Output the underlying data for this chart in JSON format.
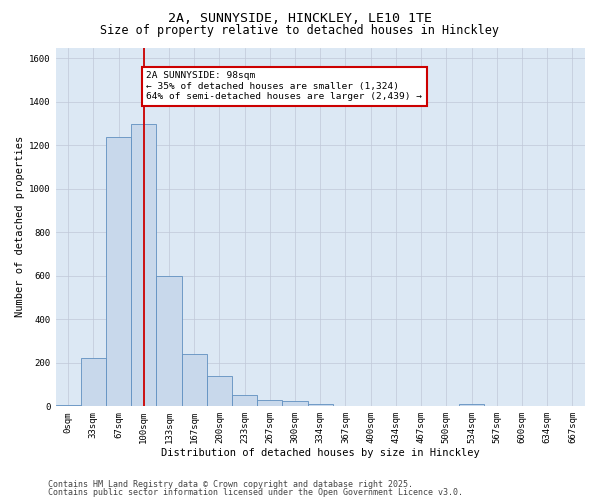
{
  "title1": "2A, SUNNYSIDE, HINCKLEY, LE10 1TE",
  "title2": "Size of property relative to detached houses in Hinckley",
  "xlabel": "Distribution of detached houses by size in Hinckley",
  "ylabel": "Number of detached properties",
  "categories": [
    "0sqm",
    "33sqm",
    "67sqm",
    "100sqm",
    "133sqm",
    "167sqm",
    "200sqm",
    "233sqm",
    "267sqm",
    "300sqm",
    "334sqm",
    "367sqm",
    "400sqm",
    "434sqm",
    "467sqm",
    "500sqm",
    "534sqm",
    "567sqm",
    "600sqm",
    "634sqm",
    "667sqm"
  ],
  "values": [
    5,
    220,
    1240,
    1300,
    600,
    240,
    140,
    50,
    28,
    25,
    8,
    0,
    0,
    0,
    0,
    0,
    12,
    0,
    0,
    0,
    0
  ],
  "bar_color": "#c8d8eb",
  "bar_edge_color": "#6090c0",
  "vline_x_index": 3,
  "vline_color": "#cc0000",
  "annotation_text": "2A SUNNYSIDE: 98sqm\n← 35% of detached houses are smaller (1,324)\n64% of semi-detached houses are larger (2,439) →",
  "annotation_box_color": "#cc0000",
  "ylim": [
    0,
    1650
  ],
  "yticks": [
    0,
    200,
    400,
    600,
    800,
    1000,
    1200,
    1400,
    1600
  ],
  "grid_color": "#c0c8d8",
  "bg_color": "#dce8f4",
  "footer1": "Contains HM Land Registry data © Crown copyright and database right 2025.",
  "footer2": "Contains public sector information licensed under the Open Government Licence v3.0.",
  "title_fontsize": 9.5,
  "subtitle_fontsize": 8.5,
  "axis_label_fontsize": 7.5,
  "tick_fontsize": 6.5,
  "annotation_fontsize": 6.8,
  "footer_fontsize": 6.0
}
